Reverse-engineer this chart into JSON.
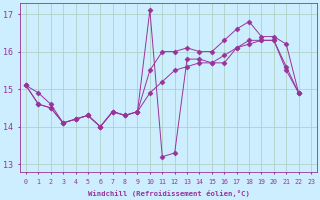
{
  "xlabel": "Windchill (Refroidissement éolien,°C)",
  "background_color": "#cceeff",
  "grid_color": "#aaccbb",
  "line_color": "#993399",
  "xlim": [
    -0.5,
    23.5
  ],
  "ylim": [
    12.8,
    17.3
  ],
  "xticks": [
    0,
    1,
    2,
    3,
    4,
    5,
    6,
    7,
    8,
    9,
    10,
    11,
    12,
    13,
    14,
    15,
    16,
    17,
    18,
    19,
    20,
    21,
    22,
    23
  ],
  "yticks": [
    13,
    14,
    15,
    16,
    17
  ],
  "series_spike": [
    15.1,
    14.9,
    14.6,
    14.1,
    14.2,
    14.3,
    14.0,
    14.4,
    14.3,
    14.4,
    17.1,
    13.2,
    13.3,
    15.8,
    15.8,
    15.7,
    15.7,
    16.1,
    16.3,
    16.3,
    16.3,
    15.6,
    14.9
  ],
  "series_smooth_low": [
    15.1,
    14.6,
    14.5,
    14.1,
    14.2,
    14.3,
    14.0,
    14.4,
    14.3,
    14.4,
    14.9,
    15.2,
    15.5,
    15.6,
    15.7,
    15.7,
    15.9,
    16.1,
    16.2,
    16.3,
    16.3,
    15.5,
    14.9
  ],
  "series_smooth_high": [
    15.1,
    14.6,
    14.5,
    14.1,
    14.2,
    14.3,
    14.0,
    14.4,
    14.3,
    14.4,
    15.5,
    16.0,
    16.0,
    16.1,
    16.0,
    16.0,
    16.3,
    16.6,
    16.8,
    16.4,
    16.4,
    16.2,
    14.9
  ]
}
